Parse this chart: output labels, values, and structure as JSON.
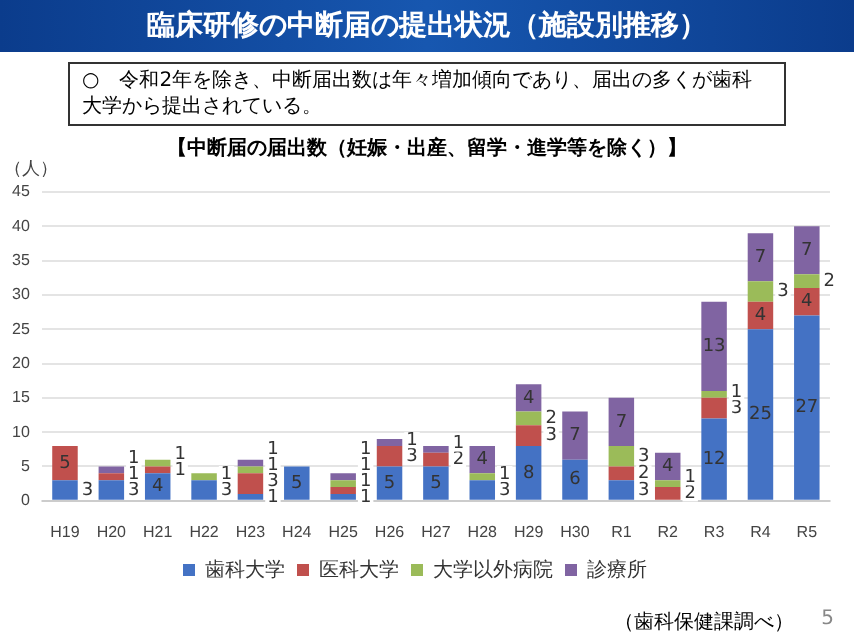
{
  "chart_data": {
    "type": "bar",
    "title": "臨床研修の中断届の提出状況（施設別推移）",
    "subtitle": "○　令和2年を除き、中断届出数は年々増加傾向であり、届出の多くが歯科大学から提出されている。",
    "xlabel": "【中断届の届出数（妊娠・出産、留学・進学等を除く）】",
    "ylabel": "（人）",
    "annotations": [
      "（歯科保健課調べ）",
      "5"
    ],
    "categories": [
      "H19",
      "H20",
      "H21",
      "H22",
      "H23",
      "H24",
      "H25",
      "H26",
      "H27",
      "H28",
      "H29",
      "H30",
      "R1",
      "R2",
      "R3",
      "R4",
      "R5"
    ],
    "stacked": true,
    "series": [
      {
        "name": "歯科大学",
        "color": "#4472c4",
        "values": [
          3,
          3,
          4,
          3,
          1,
          5,
          1,
          5,
          5,
          3,
          8,
          6,
          3,
          0,
          12,
          25,
          27
        ],
        "value_labels": [
          "3",
          "3",
          "4",
          "3",
          "1",
          "5",
          "1",
          "5",
          "5",
          "3",
          "8",
          "6",
          "3",
          null,
          "12",
          "25",
          "27"
        ]
      },
      {
        "name": "医科大学",
        "color": "#c0504d",
        "values": [
          5,
          1,
          1,
          0,
          3,
          0,
          1,
          3,
          2,
          0,
          3,
          0,
          2,
          2,
          3,
          4,
          4
        ],
        "value_labels": [
          "5",
          "1",
          "1",
          null,
          "3",
          null,
          "1",
          "3",
          "2",
          null,
          "3",
          null,
          "2",
          "2",
          "3",
          "4",
          "4"
        ]
      },
      {
        "name": "大学以外病院",
        "color": "#9bbb59",
        "values": [
          0,
          0,
          1,
          1,
          1,
          0,
          1,
          0,
          0,
          1,
          2,
          0,
          3,
          1,
          1,
          3,
          2
        ],
        "value_labels": [
          null,
          null,
          "1",
          "1",
          "1",
          null,
          "1",
          null,
          null,
          "1",
          "2",
          null,
          "3",
          "1",
          "1",
          "3",
          "2"
        ]
      },
      {
        "name": "診療所",
        "color": "#8064a2",
        "values": [
          0,
          1,
          0,
          0,
          1,
          0,
          1,
          1,
          1,
          4,
          4,
          7,
          7,
          4,
          13,
          7,
          7
        ],
        "value_labels": [
          null,
          "1",
          null,
          null,
          "1",
          null,
          "1",
          "1",
          "1",
          "4",
          "4",
          "7",
          "7",
          "4",
          "13",
          "7",
          "7"
        ]
      }
    ],
    "ylim": [
      0,
      45
    ],
    "yticks": [
      0,
      5,
      10,
      15,
      20,
      25,
      30,
      35,
      40,
      45
    ],
    "grid": "y",
    "legend": "bottom"
  }
}
